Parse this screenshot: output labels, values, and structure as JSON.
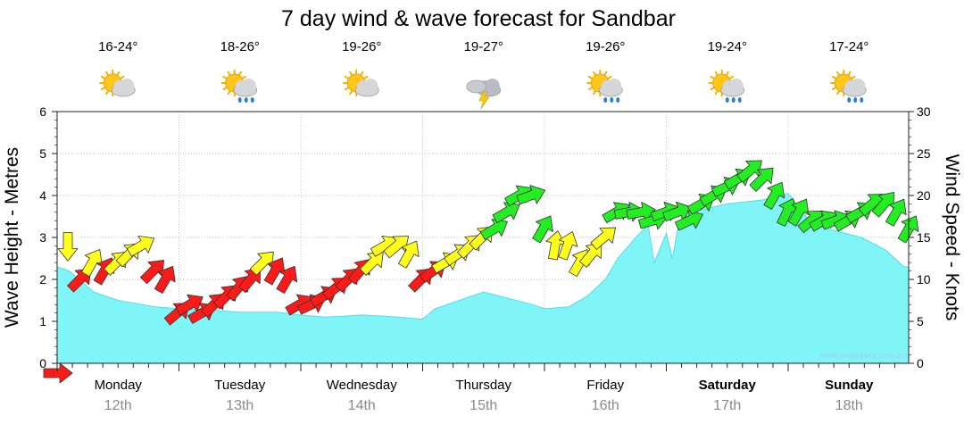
{
  "title": "7 day wind & wave forecast for Sandbar",
  "watermark": "www.seabreeze.com.au",
  "days": [
    {
      "name": "Monday",
      "date": "12th",
      "range": "16-24°",
      "icon": "sun-cloud-icon",
      "bold": false
    },
    {
      "name": "Tuesday",
      "date": "13th",
      "range": "18-26°",
      "icon": "sun-cloud-rain-icon",
      "bold": false
    },
    {
      "name": "Wednesday",
      "date": "14th",
      "range": "19-26°",
      "icon": "sun-cloud-icon",
      "bold": false
    },
    {
      "name": "Thursday",
      "date": "15th",
      "range": "19-27°",
      "icon": "storm-icon",
      "bold": false
    },
    {
      "name": "Friday",
      "date": "16th",
      "range": "19-26°",
      "icon": "sun-cloud-rain-icon",
      "bold": false
    },
    {
      "name": "Saturday",
      "date": "17th",
      "range": "19-24°",
      "icon": "sun-cloud-rain-icon",
      "bold": true
    },
    {
      "name": "Sunday",
      "date": "18th",
      "range": "17-24°",
      "icon": "sun-cloud-rain-icon",
      "bold": true
    }
  ],
  "colors": {
    "wave_fill": "#80f5f8",
    "wave_stroke": "#5cd8e8",
    "wind_red": "#ff1a1a",
    "wind_yellow": "#ffff1a",
    "wind_green": "#22ee22",
    "grid": "#aaaaaa",
    "date_text": "#8a8a8a"
  },
  "chart_data": {
    "type": "area",
    "title": "7 day wind & wave forecast for Sandbar",
    "ylabel_left": "Wave Height - Metres",
    "ylabel_right": "Wind Speed - Knots",
    "ylim_left": [
      0,
      6
    ],
    "ylim_right": [
      0,
      30
    ],
    "yticks_left": [
      "0",
      "1",
      "2",
      "3",
      "4",
      "5",
      "6"
    ],
    "yticks_right": [
      "0",
      "5",
      "10",
      "15",
      "20",
      "25",
      "30"
    ],
    "x_unit": "days from Monday 12th 00:00",
    "grid": true,
    "series": [
      {
        "kind": "wave_height_m",
        "x": [
          0,
          0.1,
          0.3,
          0.5,
          0.8,
          1.0,
          1.2,
          1.5,
          1.8,
          2.0,
          2.2,
          2.5,
          2.7,
          2.8,
          3.0,
          3.1,
          3.3,
          3.5,
          3.7,
          3.9,
          4.0,
          4.2,
          4.35,
          4.5,
          4.6,
          4.75,
          4.85,
          4.9,
          5.0,
          5.05,
          5.1,
          5.2,
          5.5,
          5.8,
          6.0,
          6.2,
          6.4,
          6.6,
          6.8,
          6.95
        ],
        "y": [
          2.3,
          2.2,
          1.7,
          1.5,
          1.35,
          1.3,
          1.28,
          1.22,
          1.22,
          1.15,
          1.1,
          1.15,
          1.12,
          1.1,
          1.05,
          1.3,
          1.5,
          1.7,
          1.55,
          1.4,
          1.3,
          1.35,
          1.6,
          2.0,
          2.5,
          3.0,
          3.3,
          2.4,
          3.1,
          2.5,
          3.3,
          3.6,
          3.8,
          3.9,
          4.05,
          3.3,
          3.15,
          3.0,
          2.7,
          2.3
        ]
      },
      {
        "kind": "wind_knots",
        "x": [
          0.0,
          0.1,
          0.2,
          0.3,
          0.4,
          0.5,
          0.6,
          0.7,
          0.8,
          0.9,
          1.0,
          1.1,
          1.2,
          1.3,
          1.4,
          1.5,
          1.6,
          1.7,
          1.8,
          1.9,
          2.0,
          2.1,
          2.2,
          2.3,
          2.4,
          2.5,
          2.6,
          2.7,
          2.8,
          2.9,
          3.0,
          3.1,
          3.2,
          3.3,
          3.4,
          3.5,
          3.6,
          3.7,
          3.8,
          3.9,
          4.0,
          4.1,
          4.2,
          4.3,
          4.4,
          4.5,
          4.6,
          4.7,
          4.8,
          4.9,
          5.0,
          5.1,
          5.2,
          5.3,
          5.4,
          5.5,
          5.6,
          5.7,
          5.8,
          5.9,
          6.0,
          6.1,
          6.2,
          6.3,
          6.4,
          6.5,
          6.6,
          6.7,
          6.8,
          6.9
        ],
        "y": [
          14,
          10,
          12,
          11,
          12,
          13,
          14,
          11,
          10,
          6,
          7,
          6,
          7,
          8,
          9,
          10,
          12,
          11,
          10,
          7,
          7,
          8,
          9,
          10,
          11,
          12,
          14,
          14,
          13,
          10,
          11,
          12,
          13,
          14,
          15,
          16,
          18,
          20,
          20,
          16,
          14,
          14,
          12,
          13,
          15,
          18,
          18,
          18,
          17,
          18,
          18,
          17,
          19,
          20,
          21,
          22,
          23,
          22,
          20,
          18,
          18,
          17,
          17,
          17,
          17,
          18,
          19,
          19,
          18,
          16
        ],
        "direction_deg": [
          90,
          315,
          300,
          300,
          315,
          315,
          330,
          315,
          300,
          320,
          330,
          330,
          315,
          315,
          310,
          310,
          315,
          300,
          300,
          330,
          335,
          330,
          320,
          315,
          310,
          315,
          330,
          320,
          300,
          315,
          325,
          330,
          325,
          315,
          315,
          330,
          330,
          330,
          340,
          300,
          280,
          290,
          300,
          310,
          320,
          330,
          350,
          350,
          345,
          340,
          340,
          335,
          330,
          330,
          335,
          330,
          320,
          315,
          300,
          295,
          300,
          320,
          330,
          340,
          330,
          330,
          320,
          310,
          300,
          300
        ]
      }
    ]
  }
}
